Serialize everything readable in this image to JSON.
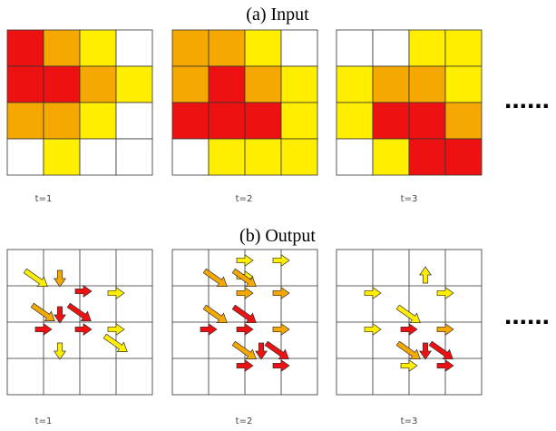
{
  "colors": {
    "red": "#ee1111",
    "orange": "#f5a800",
    "yellow": "#ffee00",
    "white": "#ffffff"
  },
  "input": {
    "title": "(a) Input",
    "frames": [
      {
        "label": "t=1",
        "grid": [
          [
            "red",
            "orange",
            "yellow",
            "white"
          ],
          [
            "red",
            "red",
            "orange",
            "yellow"
          ],
          [
            "orange",
            "orange",
            "yellow",
            "white"
          ],
          [
            "white",
            "yellow",
            "white",
            "white"
          ]
        ]
      },
      {
        "label": "t=2",
        "grid": [
          [
            "orange",
            "orange",
            "yellow",
            "white"
          ],
          [
            "orange",
            "red",
            "orange",
            "yellow"
          ],
          [
            "red",
            "red",
            "red",
            "yellow"
          ],
          [
            "white",
            "yellow",
            "yellow",
            "yellow"
          ]
        ]
      },
      {
        "label": "t=3",
        "grid": [
          [
            "white",
            "white",
            "yellow",
            "yellow"
          ],
          [
            "yellow",
            "orange",
            "orange",
            "yellow"
          ],
          [
            "yellow",
            "red",
            "red",
            "orange"
          ],
          [
            "white",
            "yellow",
            "red",
            "red"
          ]
        ]
      }
    ],
    "ellipsis": "......"
  },
  "output": {
    "title": "(b) Output",
    "frames": [
      {
        "label": "t=1",
        "arrows": [
          {
            "row": 0.8,
            "col": 0.8,
            "dir": "se",
            "color": "yellow"
          },
          {
            "row": 0.8,
            "col": 1.45,
            "dir": "s",
            "color": "orange"
          },
          {
            "row": 1.15,
            "col": 2.1,
            "dir": "e",
            "color": "red"
          },
          {
            "row": 1.2,
            "col": 3.0,
            "dir": "e",
            "color": "yellow"
          },
          {
            "row": 1.75,
            "col": 1.0,
            "dir": "se",
            "color": "orange"
          },
          {
            "row": 1.8,
            "col": 1.45,
            "dir": "s",
            "color": "red"
          },
          {
            "row": 1.75,
            "col": 2.0,
            "dir": "se",
            "color": "red"
          },
          {
            "row": 2.2,
            "col": 1.0,
            "dir": "e",
            "color": "red"
          },
          {
            "row": 2.2,
            "col": 2.1,
            "dir": "e",
            "color": "red"
          },
          {
            "row": 2.2,
            "col": 3.0,
            "dir": "e",
            "color": "yellow"
          },
          {
            "row": 2.6,
            "col": 3.0,
            "dir": "se",
            "color": "yellow"
          },
          {
            "row": 2.8,
            "col": 1.45,
            "dir": "s",
            "color": "yellow"
          }
        ]
      },
      {
        "label": "t=2",
        "arrows": [
          {
            "row": 0.3,
            "col": 2.0,
            "dir": "e",
            "color": "yellow"
          },
          {
            "row": 0.3,
            "col": 3.0,
            "dir": "e",
            "color": "yellow"
          },
          {
            "row": 0.75,
            "col": 2.0,
            "dir": "e",
            "color": "yellow"
          },
          {
            "row": 0.8,
            "col": 1.2,
            "dir": "se",
            "color": "orange"
          },
          {
            "row": 0.8,
            "col": 2.0,
            "dir": "se",
            "color": "orange"
          },
          {
            "row": 1.2,
            "col": 2.0,
            "dir": "e",
            "color": "orange"
          },
          {
            "row": 1.2,
            "col": 3.0,
            "dir": "e",
            "color": "orange"
          },
          {
            "row": 1.8,
            "col": 1.2,
            "dir": "se",
            "color": "orange"
          },
          {
            "row": 1.8,
            "col": 2.0,
            "dir": "se",
            "color": "red"
          },
          {
            "row": 2.2,
            "col": 1.0,
            "dir": "e",
            "color": "red"
          },
          {
            "row": 2.2,
            "col": 2.0,
            "dir": "e",
            "color": "red"
          },
          {
            "row": 2.2,
            "col": 3.0,
            "dir": "e",
            "color": "orange"
          },
          {
            "row": 2.8,
            "col": 2.0,
            "dir": "se",
            "color": "orange"
          },
          {
            "row": 2.8,
            "col": 2.45,
            "dir": "s",
            "color": "red"
          },
          {
            "row": 2.8,
            "col": 2.9,
            "dir": "se",
            "color": "red"
          },
          {
            "row": 3.2,
            "col": 2.0,
            "dir": "e",
            "color": "red"
          },
          {
            "row": 3.2,
            "col": 3.0,
            "dir": "e",
            "color": "red"
          }
        ]
      },
      {
        "label": "t=3",
        "arrows": [
          {
            "row": 0.7,
            "col": 2.45,
            "dir": "n",
            "color": "yellow"
          },
          {
            "row": 1.2,
            "col": 1.0,
            "dir": "e",
            "color": "yellow"
          },
          {
            "row": 1.2,
            "col": 3.0,
            "dir": "e",
            "color": "yellow"
          },
          {
            "row": 1.8,
            "col": 2.0,
            "dir": "se",
            "color": "yellow"
          },
          {
            "row": 2.2,
            "col": 1.0,
            "dir": "e",
            "color": "yellow"
          },
          {
            "row": 2.2,
            "col": 2.0,
            "dir": "e",
            "color": "red"
          },
          {
            "row": 2.2,
            "col": 3.0,
            "dir": "e",
            "color": "orange"
          },
          {
            "row": 2.8,
            "col": 2.0,
            "dir": "se",
            "color": "orange"
          },
          {
            "row": 2.8,
            "col": 2.45,
            "dir": "s",
            "color": "red"
          },
          {
            "row": 2.8,
            "col": 2.9,
            "dir": "se",
            "color": "red"
          },
          {
            "row": 3.2,
            "col": 2.0,
            "dir": "e",
            "color": "yellow"
          },
          {
            "row": 3.2,
            "col": 3.0,
            "dir": "e",
            "color": "red"
          }
        ]
      }
    ],
    "ellipsis": "......"
  }
}
